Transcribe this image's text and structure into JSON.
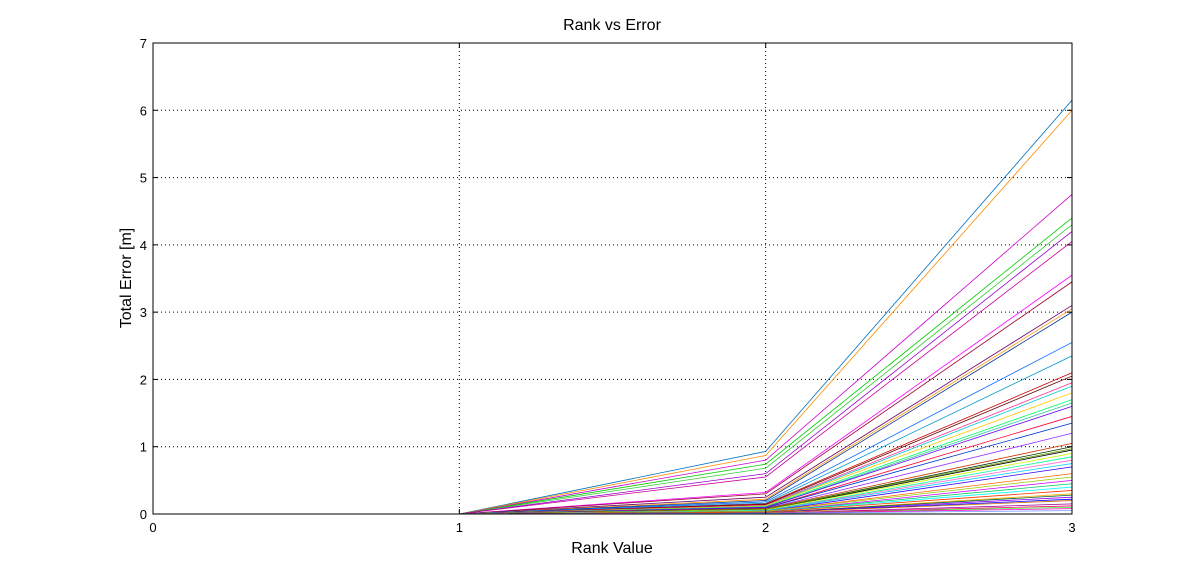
{
  "chart_data": {
    "type": "line",
    "title": "Rank vs Error",
    "xlabel": "Rank Value",
    "ylabel": "Total Error [m]",
    "xlim": [
      0,
      3
    ],
    "ylim": [
      0,
      7
    ],
    "xticks": [
      "0",
      "1",
      "2",
      "3"
    ],
    "yticks": [
      "0",
      "1",
      "2",
      "3",
      "4",
      "5",
      "6",
      "7"
    ],
    "grid": true,
    "grid_style": "dotted",
    "legend": "none",
    "x": [
      1,
      2,
      3
    ],
    "series": [
      {
        "values": [
          0,
          0.93,
          6.15
        ],
        "color": "#0072bd"
      },
      {
        "values": [
          0,
          0.87,
          6.0
        ],
        "color": "#ff8c00"
      },
      {
        "values": [
          0,
          0.8,
          4.75
        ],
        "color": "#cc00cc"
      },
      {
        "values": [
          0,
          0.74,
          4.4
        ],
        "color": "#00cc00"
      },
      {
        "values": [
          0,
          0.68,
          4.3
        ],
        "color": "#33cc33"
      },
      {
        "values": [
          0,
          0.6,
          4.2
        ],
        "color": "#9900cc"
      },
      {
        "values": [
          0,
          0.55,
          4.05
        ],
        "color": "#cc0099"
      },
      {
        "values": [
          0,
          0.32,
          3.55
        ],
        "color": "#ff00ff"
      },
      {
        "values": [
          0,
          0.3,
          3.45
        ],
        "color": "#990033"
      },
      {
        "values": [
          0,
          0.25,
          3.1
        ],
        "color": "#660066"
      },
      {
        "values": [
          0,
          0.22,
          3.05
        ],
        "color": "#ff9900"
      },
      {
        "values": [
          0,
          0.2,
          3.0
        ],
        "color": "#003399"
      },
      {
        "values": [
          0,
          0.18,
          2.55
        ],
        "color": "#0066ff"
      },
      {
        "values": [
          0,
          0.16,
          2.35
        ],
        "color": "#0099cc"
      },
      {
        "values": [
          0,
          0.15,
          2.1
        ],
        "color": "#cc0000"
      },
      {
        "values": [
          0,
          0.14,
          2.05
        ],
        "color": "#660000"
      },
      {
        "values": [
          0,
          0.13,
          1.95
        ],
        "color": "#ff3399"
      },
      {
        "values": [
          0,
          0.12,
          1.9
        ],
        "color": "#00cccc"
      },
      {
        "values": [
          0,
          0.12,
          1.8
        ],
        "color": "#ffcc00"
      },
      {
        "values": [
          0,
          0.11,
          1.7
        ],
        "color": "#00ff66"
      },
      {
        "values": [
          0,
          0.1,
          1.65
        ],
        "color": "#33cc99"
      },
      {
        "values": [
          0,
          0.1,
          1.6
        ],
        "color": "#6600ff"
      },
      {
        "values": [
          0,
          0.09,
          1.45
        ],
        "color": "#ff0033"
      },
      {
        "values": [
          0,
          0.09,
          1.35
        ],
        "color": "#0033cc"
      },
      {
        "values": [
          0,
          0.08,
          1.2
        ],
        "color": "#9933ff"
      },
      {
        "values": [
          0,
          0.08,
          1.05
        ],
        "color": "#cc3300"
      },
      {
        "values": [
          0,
          0.07,
          1.0
        ],
        "color": "#003300"
      },
      {
        "values": [
          0,
          0.07,
          0.97
        ],
        "color": "#669900"
      },
      {
        "values": [
          0,
          0.06,
          0.95
        ],
        "color": "#000000"
      },
      {
        "values": [
          0,
          0.06,
          0.9
        ],
        "color": "#ccff00"
      },
      {
        "values": [
          0,
          0.05,
          0.85
        ],
        "color": "#00ff99"
      },
      {
        "values": [
          0,
          0.05,
          0.8
        ],
        "color": "#ff66cc"
      },
      {
        "values": [
          0,
          0.05,
          0.75
        ],
        "color": "#00ccff"
      },
      {
        "values": [
          0,
          0.04,
          0.7
        ],
        "color": "#3300ff"
      },
      {
        "values": [
          0,
          0.04,
          0.6
        ],
        "color": "#ff6600"
      },
      {
        "values": [
          0,
          0.04,
          0.55
        ],
        "color": "#99cc00"
      },
      {
        "values": [
          0,
          0.03,
          0.5
        ],
        "color": "#cc00ff"
      },
      {
        "values": [
          0,
          0.03,
          0.45
        ],
        "color": "#00cc66"
      },
      {
        "values": [
          0,
          0.03,
          0.4
        ],
        "color": "#00ffff"
      },
      {
        "values": [
          0,
          0.03,
          0.35
        ],
        "color": "#ff3300"
      },
      {
        "values": [
          0,
          0.02,
          0.3
        ],
        "color": "#ffaa00"
      },
      {
        "values": [
          0,
          0.02,
          0.28
        ],
        "color": "#006633"
      },
      {
        "values": [
          0,
          0.02,
          0.25
        ],
        "color": "#9900ff"
      },
      {
        "values": [
          0,
          0.02,
          0.22
        ],
        "color": "#0000ff"
      },
      {
        "values": [
          0,
          0.02,
          0.2
        ],
        "color": "#cc6600"
      },
      {
        "values": [
          0,
          0.01,
          0.15
        ],
        "color": "#990099"
      },
      {
        "values": [
          0,
          0.01,
          0.12
        ],
        "color": "#ff0066"
      },
      {
        "values": [
          0,
          0.01,
          0.1
        ],
        "color": "#33ff33"
      },
      {
        "values": [
          0,
          0.01,
          0.08
        ],
        "color": "#ff00cc"
      },
      {
        "values": [
          0,
          0.01,
          0.05
        ],
        "color": "#6699ff"
      }
    ]
  }
}
